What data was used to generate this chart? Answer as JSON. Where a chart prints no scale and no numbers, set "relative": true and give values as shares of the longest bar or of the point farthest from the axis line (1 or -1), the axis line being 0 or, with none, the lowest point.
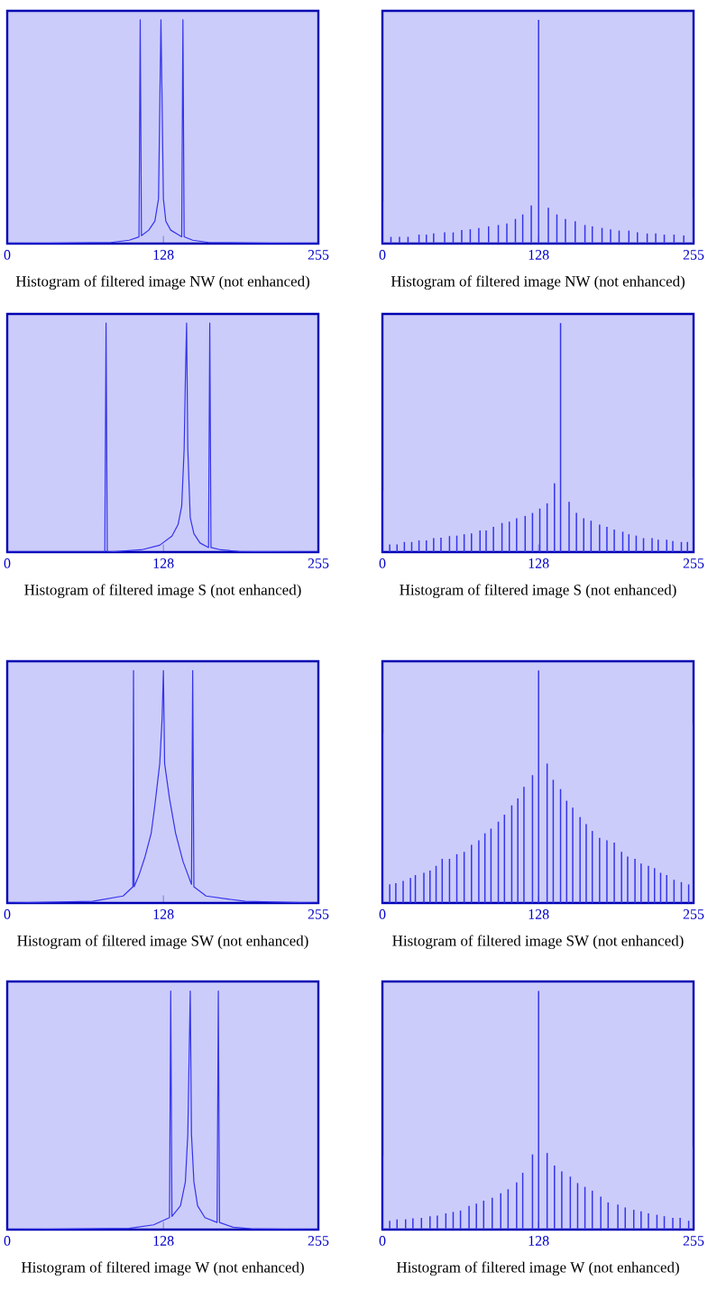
{
  "chart_data": [
    {
      "type": "line",
      "relative": true,
      "xlabel": "Histogram of filtered image NW (not enhanced)",
      "xlim": [
        0,
        255
      ],
      "xticks": [
        0,
        128,
        255
      ],
      "series": [
        {
          "color": "#3333ee",
          "x": [
            0,
            85,
            100,
            108,
            109,
            110,
            116,
            121,
            124,
            125,
            126,
            127,
            128,
            130,
            134,
            140,
            143,
            144,
            145,
            152,
            165,
            255
          ],
          "values": [
            0,
            0.005,
            0.015,
            0.03,
            1,
            0.035,
            0.06,
            0.1,
            0.2,
            0.6,
            1,
            0.6,
            0.2,
            0.1,
            0.06,
            0.04,
            0.03,
            1,
            0.03,
            0.015,
            0.005,
            0
          ]
        }
      ]
    },
    {
      "type": "bar",
      "relative": true,
      "xlabel": "Histogram of filtered image NW (not enhanced)",
      "xlim": [
        0,
        255
      ],
      "xticks": [
        0,
        128,
        255
      ],
      "series": [
        {
          "color": "#3333ee",
          "x": [
            0,
            7,
            14,
            21,
            30,
            36,
            42,
            51,
            58,
            65,
            72,
            79,
            87,
            95,
            102,
            109,
            115,
            122,
            128,
            136,
            143,
            150,
            158,
            166,
            172,
            180,
            187,
            194,
            202,
            209,
            217,
            224,
            231,
            239,
            247,
            255
          ],
          "values": [
            0.19,
            0.03,
            0.03,
            0.03,
            0.04,
            0.04,
            0.045,
            0.05,
            0.05,
            0.06,
            0.064,
            0.07,
            0.077,
            0.083,
            0.09,
            0.11,
            0.13,
            0.17,
            1,
            0.16,
            0.13,
            0.11,
            0.1,
            0.083,
            0.077,
            0.07,
            0.064,
            0.058,
            0.058,
            0.05,
            0.045,
            0.045,
            0.04,
            0.04,
            0.036,
            0.2
          ]
        }
      ]
    },
    {
      "type": "line",
      "relative": true,
      "xlabel": "Histogram of filtered image S (not enhanced)",
      "xlim": [
        0,
        255
      ],
      "xticks": [
        0,
        128,
        255
      ],
      "series": [
        {
          "color": "#3333ee",
          "x": [
            0,
            80,
            81,
            82,
            110,
            125,
            135,
            140,
            143,
            145,
            146,
            147,
            148,
            150,
            153,
            158,
            165,
            166,
            167,
            175,
            190,
            255
          ],
          "values": [
            0,
            0,
            1,
            0,
            0.01,
            0.03,
            0.07,
            0.12,
            0.2,
            0.45,
            0.75,
            1,
            0.45,
            0.15,
            0.08,
            0.04,
            0.02,
            1,
            0.02,
            0.01,
            0.003,
            0
          ]
        }
      ]
    },
    {
      "type": "bar",
      "relative": true,
      "xlabel": "Histogram of filtered image S (not enhanced)",
      "xlim": [
        0,
        255
      ],
      "xticks": [
        0,
        128,
        255
      ],
      "series": [
        {
          "color": "#3333ee",
          "x": [
            0,
            6,
            12,
            18,
            24,
            30,
            36,
            42,
            48,
            55,
            61,
            67,
            73,
            80,
            85,
            91,
            98,
            104,
            110,
            117,
            123,
            129,
            135,
            141,
            146,
            153,
            159,
            165,
            171,
            178,
            184,
            190,
            197,
            202,
            208,
            214,
            221,
            226,
            233,
            238,
            245,
            250,
            255
          ],
          "values": [
            0.27,
            0.034,
            0.034,
            0.044,
            0.044,
            0.051,
            0.051,
            0.061,
            0.063,
            0.07,
            0.072,
            0.078,
            0.082,
            0.095,
            0.095,
            0.11,
            0.127,
            0.133,
            0.148,
            0.158,
            0.171,
            0.19,
            0.213,
            0.3,
            1,
            0.22,
            0.171,
            0.148,
            0.137,
            0.12,
            0.11,
            0.099,
            0.089,
            0.078,
            0.072,
            0.061,
            0.061,
            0.054,
            0.054,
            0.048,
            0.044,
            0.044,
            0.32
          ]
        }
      ]
    },
    {
      "type": "line",
      "relative": true,
      "xlabel": "Histogram of filtered image SW (not enhanced)",
      "xlim": [
        0,
        255
      ],
      "xticks": [
        0,
        128,
        255
      ],
      "series": [
        {
          "color": "#3333ee",
          "x": [
            0,
            70,
            95,
            103,
            103.5,
            104,
            108,
            113,
            118,
            121,
            125,
            127,
            128,
            129,
            133,
            138,
            144,
            151,
            152,
            153,
            163,
            195,
            255
          ],
          "values": [
            0,
            0.007,
            0.03,
            0.07,
            1,
            0.07,
            0.12,
            0.2,
            0.3,
            0.42,
            0.6,
            0.8,
            1,
            0.6,
            0.45,
            0.3,
            0.18,
            0.08,
            1,
            0.07,
            0.03,
            0.007,
            0
          ]
        }
      ]
    },
    {
      "type": "bar",
      "relative": true,
      "xlabel": "Histogram of filtered image SW (not enhanced)",
      "xlim": [
        0,
        255
      ],
      "xticks": [
        0,
        128,
        255
      ],
      "series": [
        {
          "color": "#3333ee",
          "x": [
            0,
            6,
            11,
            17,
            23,
            27,
            34,
            39,
            44,
            49,
            55,
            61,
            67,
            73,
            79,
            84,
            89,
            95,
            100,
            106,
            111,
            116,
            123,
            128,
            135,
            140,
            146,
            151,
            156,
            162,
            167,
            172,
            178,
            184,
            190,
            196,
            201,
            207,
            212,
            218,
            223,
            228,
            233,
            239,
            245,
            251,
            255
          ],
          "values": [
            0.73,
            0.081,
            0.085,
            0.095,
            0.108,
            0.12,
            0.13,
            0.14,
            0.16,
            0.19,
            0.19,
            0.21,
            0.22,
            0.25,
            0.27,
            0.3,
            0.32,
            0.35,
            0.38,
            0.42,
            0.45,
            0.5,
            0.55,
            1,
            0.6,
            0.53,
            0.49,
            0.44,
            0.41,
            0.37,
            0.34,
            0.31,
            0.28,
            0.27,
            0.26,
            0.22,
            0.2,
            0.19,
            0.17,
            0.16,
            0.15,
            0.13,
            0.12,
            0.1,
            0.09,
            0.08,
            0.77
          ]
        }
      ]
    },
    {
      "type": "line",
      "relative": true,
      "xlabel": "Histogram of filtered image W (not enhanced)",
      "xlim": [
        0,
        255
      ],
      "xticks": [
        0,
        128,
        255
      ],
      "series": [
        {
          "color": "#3333ee",
          "x": [
            0,
            100,
            120,
            133,
            134,
            135,
            142,
            146,
            148,
            149,
            150,
            151,
            153,
            156,
            162,
            172,
            173,
            174,
            185,
            200,
            255
          ],
          "values": [
            0,
            0.005,
            0.02,
            0.05,
            1,
            0.055,
            0.1,
            0.2,
            0.4,
            0.7,
            1,
            0.4,
            0.2,
            0.1,
            0.05,
            0.03,
            1,
            0.03,
            0.01,
            0.003,
            0
          ]
        }
      ]
    },
    {
      "type": "bar",
      "relative": true,
      "xlabel": "Histogram of filtered image W (not enhanced)",
      "xlim": [
        0,
        255
      ],
      "xticks": [
        0,
        128,
        255
      ],
      "series": [
        {
          "color": "#3333ee",
          "x": [
            0,
            6,
            12,
            19,
            25,
            32,
            39,
            45,
            52,
            58,
            64,
            71,
            77,
            83,
            90,
            97,
            103,
            110,
            115,
            123,
            128,
            135,
            141,
            147,
            154,
            160,
            166,
            172,
            179,
            185,
            193,
            199,
            206,
            212,
            218,
            225,
            231,
            238,
            244,
            251,
            255
          ],
          "values": [
            0.31,
            0.037,
            0.043,
            0.043,
            0.047,
            0.049,
            0.056,
            0.059,
            0.068,
            0.074,
            0.08,
            0.099,
            0.109,
            0.121,
            0.133,
            0.152,
            0.169,
            0.198,
            0.238,
            0.315,
            1,
            0.321,
            0.269,
            0.244,
            0.222,
            0.195,
            0.179,
            0.163,
            0.138,
            0.114,
            0.105,
            0.093,
            0.083,
            0.077,
            0.068,
            0.062,
            0.056,
            0.049,
            0.049,
            0.037,
            0.346
          ]
        }
      ]
    }
  ]
}
